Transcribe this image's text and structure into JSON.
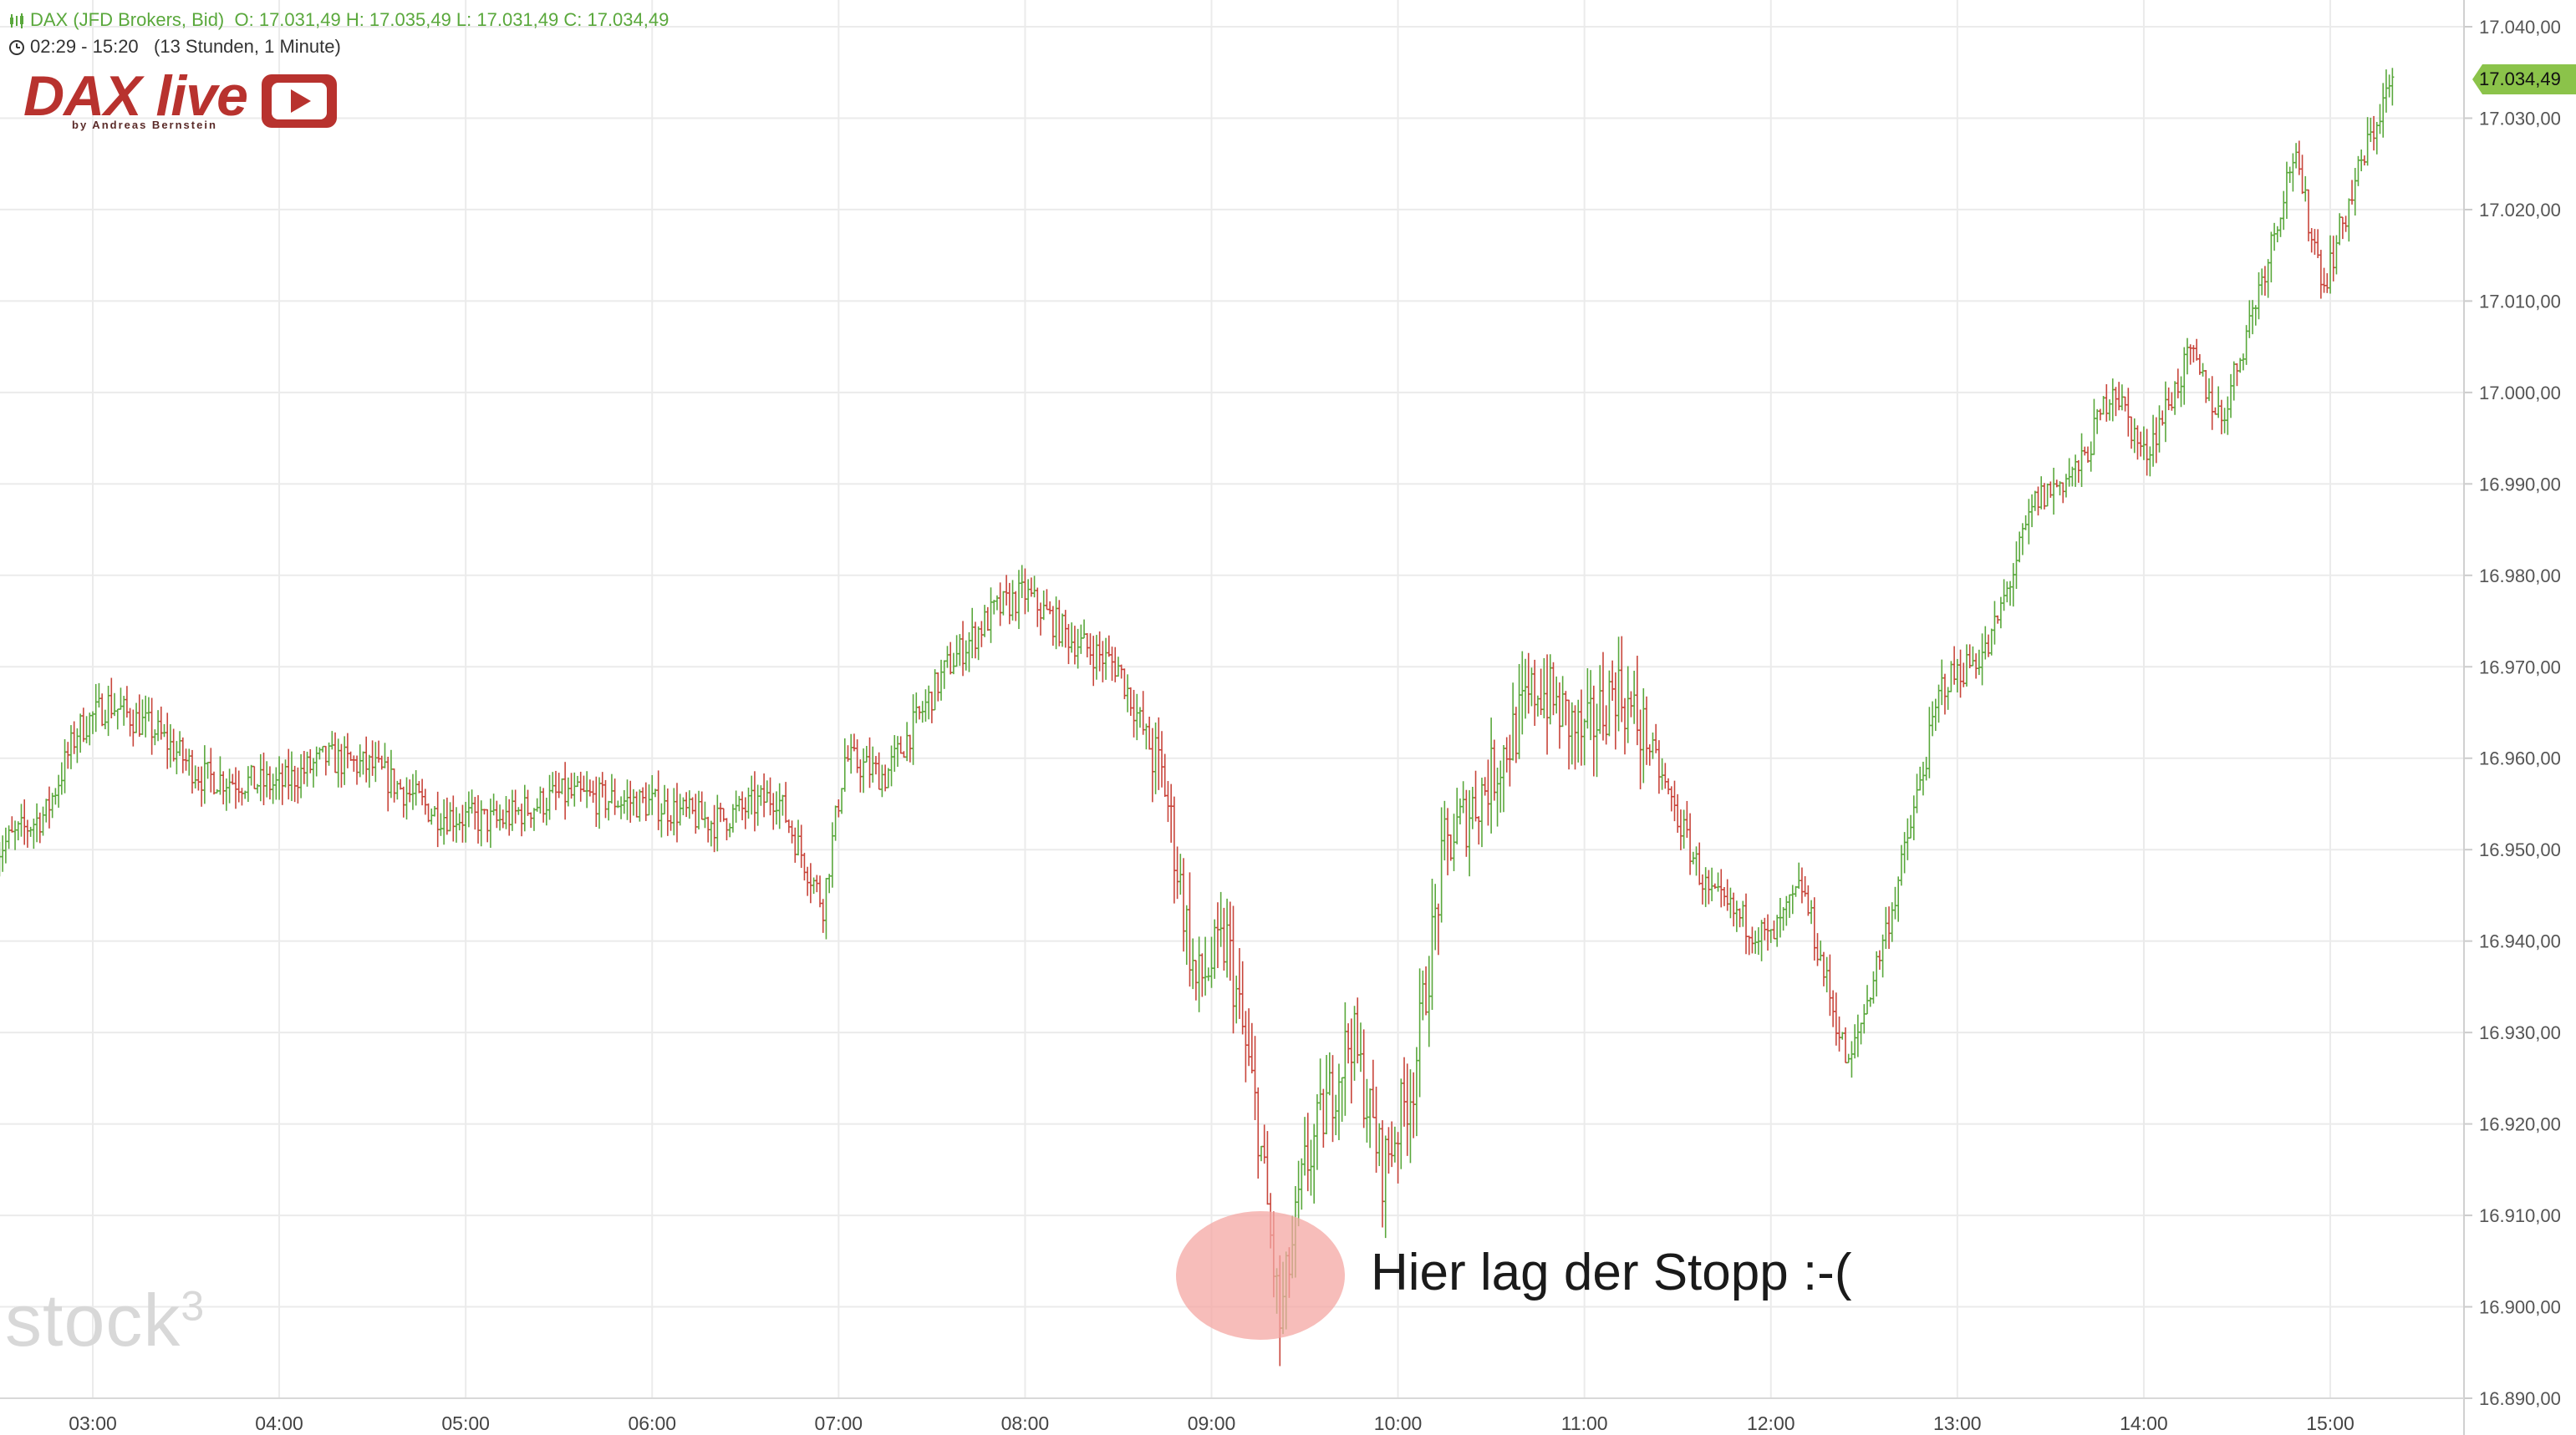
{
  "header": {
    "instrument": "DAX (JFD Brokers, Bid)",
    "ohlc": "O: 17.031,49  H: 17.035,49  L: 17.031,49  C: 17.034,49",
    "time_range": "02:29 - 15:20",
    "interval": "(13 Stunden, 1 Minute)"
  },
  "logo": {
    "main": "DAX live",
    "sub": "by Andreas Bernstein"
  },
  "watermark": {
    "text": "stock",
    "sup": "3"
  },
  "annotation": {
    "text": "Hier lag der Stopp :-("
  },
  "last_price_label": "17.034,49",
  "colors": {
    "up": "#5aa83c",
    "down": "#c8453b",
    "grid": "#ebebeb",
    "highlight": "#f4a7a3",
    "price_tag": "#8bc34a"
  },
  "chart_data": {
    "type": "ohlc",
    "title": "",
    "xlabel": "",
    "ylabel": "",
    "x_tick_labels": [
      "03:00",
      "04:00",
      "05:00",
      "06:00",
      "07:00",
      "08:00",
      "09:00",
      "10:00",
      "11:00",
      "12:00",
      "13:00",
      "14:00",
      "15:00"
    ],
    "y_tick_labels": [
      "17.040,00",
      "17.030,00",
      "17.020,00",
      "17.010,00",
      "17.000,00",
      "16.990,00",
      "16.980,00",
      "16.970,00",
      "16.960,00",
      "16.950,00",
      "16.940,00",
      "16.930,00",
      "16.920,00",
      "16.910,00",
      "16.900,00",
      "16.890,00"
    ],
    "ylim": [
      16888,
      17041
    ],
    "xlim": [
      "02:29",
      "15:20"
    ],
    "grid": true,
    "approximate_path": [
      {
        "t": "02:29",
        "p": 16950
      },
      {
        "t": "02:45",
        "p": 16954
      },
      {
        "t": "02:55",
        "p": 16963
      },
      {
        "t": "03:05",
        "p": 16966
      },
      {
        "t": "03:20",
        "p": 16963
      },
      {
        "t": "03:35",
        "p": 16958
      },
      {
        "t": "04:00",
        "p": 16957
      },
      {
        "t": "04:15",
        "p": 16960
      },
      {
        "t": "04:30",
        "p": 16959
      },
      {
        "t": "04:50",
        "p": 16954
      },
      {
        "t": "05:10",
        "p": 16953
      },
      {
        "t": "05:30",
        "p": 16956
      },
      {
        "t": "06:00",
        "p": 16955
      },
      {
        "t": "06:20",
        "p": 16953
      },
      {
        "t": "06:40",
        "p": 16956
      },
      {
        "t": "06:55",
        "p": 16944
      },
      {
        "t": "07:02",
        "p": 16960
      },
      {
        "t": "07:15",
        "p": 16958
      },
      {
        "t": "07:35",
        "p": 16970
      },
      {
        "t": "07:50",
        "p": 16976
      },
      {
        "t": "08:00",
        "p": 16978
      },
      {
        "t": "08:15",
        "p": 16973
      },
      {
        "t": "08:30",
        "p": 16970
      },
      {
        "t": "08:45",
        "p": 16957
      },
      {
        "t": "08:55",
        "p": 16935
      },
      {
        "t": "09:05",
        "p": 16940
      },
      {
        "t": "09:15",
        "p": 16920
      },
      {
        "t": "09:22",
        "p": 16898
      },
      {
        "t": "09:30",
        "p": 16915
      },
      {
        "t": "09:45",
        "p": 16930
      },
      {
        "t": "09:55",
        "p": 16915
      },
      {
        "t": "10:05",
        "p": 16925
      },
      {
        "t": "10:15",
        "p": 16950
      },
      {
        "t": "10:30",
        "p": 16958
      },
      {
        "t": "10:45",
        "p": 16968
      },
      {
        "t": "11:00",
        "p": 16962
      },
      {
        "t": "11:10",
        "p": 16968
      },
      {
        "t": "11:20",
        "p": 16962
      },
      {
        "t": "11:40",
        "p": 16945
      },
      {
        "t": "12:00",
        "p": 16940
      },
      {
        "t": "12:10",
        "p": 16946
      },
      {
        "t": "12:25",
        "p": 16926
      },
      {
        "t": "12:40",
        "p": 16945
      },
      {
        "t": "12:55",
        "p": 16968
      },
      {
        "t": "13:10",
        "p": 16972
      },
      {
        "t": "13:25",
        "p": 16988
      },
      {
        "t": "13:40",
        "p": 16992
      },
      {
        "t": "13:50",
        "p": 17001
      },
      {
        "t": "14:00",
        "p": 16993
      },
      {
        "t": "14:15",
        "p": 17004
      },
      {
        "t": "14:25",
        "p": 16997
      },
      {
        "t": "14:40",
        "p": 17015
      },
      {
        "t": "14:48",
        "p": 17026
      },
      {
        "t": "14:58",
        "p": 17012
      },
      {
        "t": "15:10",
        "p": 17025
      },
      {
        "t": "15:20",
        "p": 17034.49
      }
    ],
    "last_close": 17034.49
  }
}
